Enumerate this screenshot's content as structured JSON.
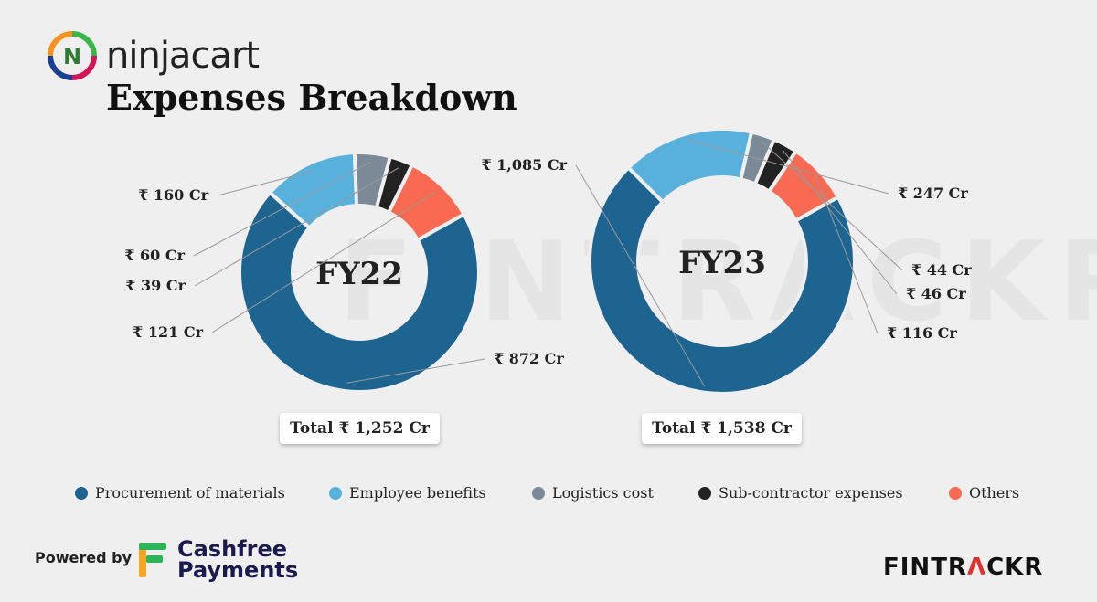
{
  "brand": {
    "name": "ninjacart",
    "logo_letter": "N"
  },
  "title": "Expenses Breakdown",
  "watermark": "FINTRACKR",
  "chart_data": [
    {
      "type": "pie",
      "center_label": "FY22",
      "total_label": "Total ₹ 1,252 Cr",
      "categories": [
        "Procurement of materials",
        "Employee benefits",
        "Logistics cost",
        "Sub-contractor expenses",
        "Others"
      ],
      "values": [
        872,
        160,
        60,
        39,
        121
      ],
      "value_labels": [
        "₹ 872 Cr",
        "₹ 160 Cr",
        "₹ 60 Cr",
        "₹ 39 Cr",
        "₹ 121 Cr"
      ]
    },
    {
      "type": "pie",
      "center_label": "FY23",
      "total_label": "Total ₹ 1,538 Cr",
      "categories": [
        "Procurement of materials",
        "Employee benefits",
        "Logistics cost",
        "Sub-contractor expenses",
        "Others"
      ],
      "values": [
        1085,
        247,
        44,
        46,
        116
      ],
      "value_labels": [
        "₹ 1,085 Cr",
        "₹ 247 Cr",
        "₹ 44 Cr",
        "₹ 46 Cr",
        "₹ 116 Cr"
      ]
    }
  ],
  "legend": [
    {
      "label": "Procurement of materials",
      "color": "#1d6491"
    },
    {
      "label": "Employee benefits",
      "color": "#58b1dc"
    },
    {
      "label": "Logistics cost",
      "color": "#7b8a96"
    },
    {
      "label": "Sub-contractor expenses",
      "color": "#222222"
    },
    {
      "label": "Others",
      "color": "#fa6a52"
    }
  ],
  "footer": {
    "powered_by": "Powered by",
    "sponsor_line1": "Cashfree",
    "sponsor_line2": "Payments",
    "brand_start": "FINTR",
    "brand_accent": "Λ",
    "brand_end": "CKR"
  }
}
